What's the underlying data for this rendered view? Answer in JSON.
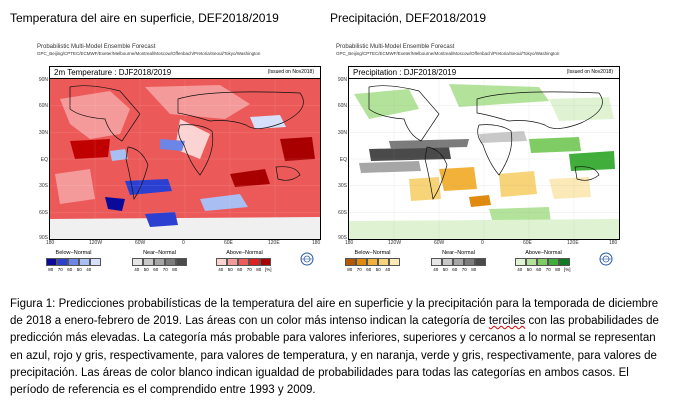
{
  "headers": {
    "left": "Temperatura del aire en superficie, DEF2018/2019",
    "right": "Precipitación, DEF2018/2019"
  },
  "panels": [
    {
      "line1": "Probabilistic Multi-Model Ensemble Forecast",
      "line2": "GPC_Beijing/CPTEC/ECMWF/Exeter/Melbourne/Montreal/Moscow/Offenbach/Pretoria/Seoul/Tokyo/Washington",
      "map_title": "2m Temperature : DJF2018/2019",
      "issued": "(Issued on Nov2018)",
      "lat_labels": [
        "90N",
        "60N",
        "30N",
        "EQ",
        "30S",
        "60S",
        "90S"
      ],
      "lon_labels": [
        "180",
        "120W",
        "60W",
        "0",
        "60E",
        "120E",
        "180"
      ],
      "legend": {
        "below_title": "Below−Normal",
        "near_title": "Near−Normal",
        "above_title": "Above−Normal",
        "below_ticks": [
          "80",
          "70",
          "60",
          "50",
          "40"
        ],
        "near_ticks": [
          "40",
          "50",
          "60",
          "70",
          "80"
        ],
        "above_ticks": [
          "40",
          "50",
          "60",
          "70",
          "80"
        ],
        "unit": "[%]",
        "below_colors": [
          "#0a0a9a",
          "#2b3fd1",
          "#6b86e6",
          "#a9bef2",
          "#d6e0fa"
        ],
        "near_colors": [
          "#e6e6e6",
          "#c8c8c8",
          "#a6a6a6",
          "#7c7c7c",
          "#4a4a4a"
        ],
        "above_colors": [
          "#fbd3d3",
          "#f59a9a",
          "#ef5a5a",
          "#e02020",
          "#a80000"
        ]
      }
    },
    {
      "line1": "Probabilistic Multi-Model Ensemble Forecast",
      "line2": "GPC_Beijing/CPTEC/ECMWF/Exeter/Melbourne/Montreal/Moscow/Offenbach/Pretoria/Seoul/Tokyo/Washington",
      "map_title": "Precipitation : DJF2018/2019",
      "issued": "(Issued on Nov2018)",
      "lat_labels": [
        "90N",
        "60N",
        "30N",
        "EQ",
        "30S",
        "60S",
        "90S"
      ],
      "lon_labels": [
        "180",
        "120W",
        "60W",
        "0",
        "60E",
        "120E",
        "180"
      ],
      "legend": {
        "below_title": "Below−Normal",
        "near_title": "Near−Normal",
        "above_title": "Above−Normal",
        "below_ticks": [
          "80",
          "70",
          "60",
          "50",
          "40"
        ],
        "near_ticks": [
          "40",
          "50",
          "60",
          "70",
          "80"
        ],
        "above_ticks": [
          "40",
          "50",
          "60",
          "70",
          "80"
        ],
        "unit": "[%]",
        "below_colors": [
          "#b35a00",
          "#e08a10",
          "#f2b23a",
          "#f8d478",
          "#fbeab8"
        ],
        "near_colors": [
          "#e6e6e6",
          "#c8c8c8",
          "#a6a6a6",
          "#7c7c7c",
          "#4a4a4a"
        ],
        "above_colors": [
          "#dff3d3",
          "#b3e39b",
          "#7fcc64",
          "#3fae3a",
          "#0f7a1f"
        ]
      }
    }
  ],
  "caption": {
    "part1": "Figura 1: Predicciones probabilísticas de la temperatura del aire en superficie y la precipitación para la temporada de diciembre de 2018 a enero-febrero de 2019. Las áreas con un color más intenso indican la categoría de ",
    "underlined": "terciles",
    "part2": " con las probabilidades de predicción más elevadas. La categoría más probable para valores inferiores, superiores y cercanos a lo normal se representan en azul, rojo y gris, respectivamente, para valores de temperatura, y en naranja, verde y gris, respectivamente, para valores de precipitación. Las áreas de color blanco indican igualdad de probabilidades para todas las categorías en ambos casos. El período de referencia es el comprendido entre 1993 y 2009."
  }
}
